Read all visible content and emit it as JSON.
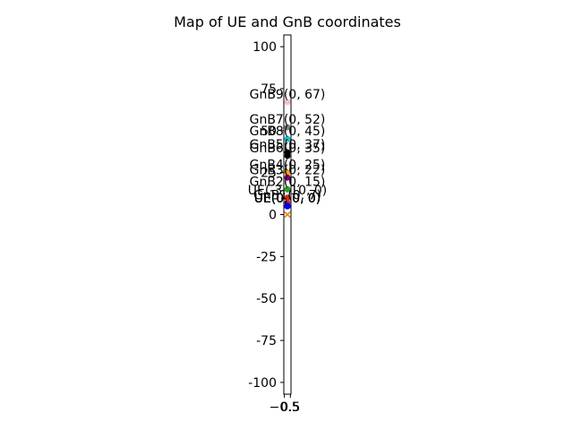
{
  "chart_data": {
    "type": "scatter",
    "title": "Map of UE and GnB coordinates",
    "xlabel": "",
    "ylabel": "",
    "xlim": [
      -0.6,
      0.6
    ],
    "ylim": [
      -107,
      107
    ],
    "y_ticks": [
      100,
      75,
      50,
      25,
      0,
      -25,
      -50,
      -75,
      -100
    ],
    "x_ticks": [
      -0.5,
      0.5
    ],
    "x_tick_labels": [
      "−0.5",
      "0.5"
    ],
    "grid": false,
    "points": [
      {
        "label": "GnB9(0, 67)",
        "x": 0,
        "y": 67,
        "color": "#ffc0cb",
        "marker": "o"
      },
      {
        "label": "GnB7(0, 52)",
        "x": 0,
        "y": 52,
        "color": "#808080",
        "marker": "o"
      },
      {
        "label": "GnB8(0, 45)",
        "x": 0,
        "y": 45,
        "color": "#17becf",
        "marker": "o"
      },
      {
        "label": "GnB5(0, 37)",
        "x": 0,
        "y": 37,
        "color": "#000000",
        "marker": "o"
      },
      {
        "label": "GnB6(0, 35)",
        "x": 0,
        "y": 35,
        "color": "#000000",
        "marker": "o"
      },
      {
        "label": "GnB4(0, 25)",
        "x": 0,
        "y": 25,
        "color": "#ffa500",
        "marker": "o"
      },
      {
        "label": "GnB3(0, 22)",
        "x": 0,
        "y": 22,
        "color": "#800080",
        "marker": "o"
      },
      {
        "label": "GnB2(0, 15)",
        "x": 0,
        "y": 15,
        "color": "#2ca02c",
        "marker": "o"
      },
      {
        "label": "UE(-3, 10, 0)",
        "x": 0,
        "y": 10,
        "color": "#d62728",
        "marker": "o"
      },
      {
        "label": "GnB1(0, 7)",
        "x": 0,
        "y": 7,
        "color": "#d62728",
        "marker": "o"
      },
      {
        "label": "UE(0, 0, 0)",
        "x": 0,
        "y": 5,
        "color": "#0000ff",
        "marker": "o"
      },
      {
        "label": "UE(0, 0, 0)",
        "x": 0,
        "y": 5,
        "color": "#0000ff",
        "marker": "o"
      },
      {
        "label": "UE(0, 0, 0)",
        "x": 0,
        "y": 5,
        "color": "#0000ff",
        "marker": "o"
      },
      {
        "label": "UE(0, 0, 0)",
        "x": 0,
        "y": 5,
        "color": "#0000ff",
        "marker": "o"
      },
      {
        "label": "UE(0, 0, 0)",
        "x": 0,
        "y": 5,
        "color": "#0000ff",
        "marker": "o"
      },
      {
        "label": "",
        "x": 0,
        "y": 0,
        "color": "#2ca02c",
        "marker": "x"
      },
      {
        "label": "",
        "x": 0,
        "y": 0,
        "color": "#ff7f0e",
        "marker": "x"
      }
    ]
  }
}
